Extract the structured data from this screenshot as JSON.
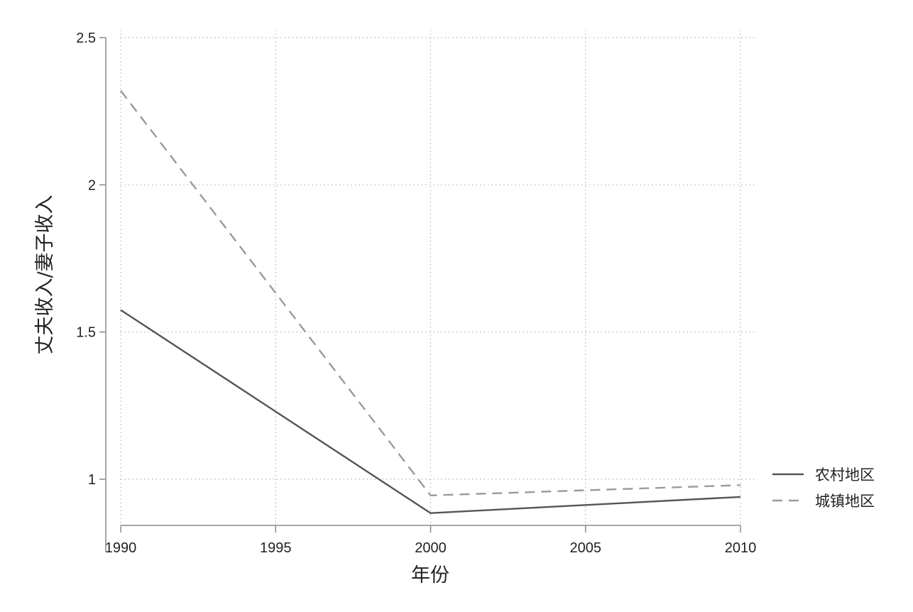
{
  "chart_data": {
    "type": "line",
    "xlabel": "年份",
    "ylabel": "丈夫收入/妻子收入",
    "x": [
      1990,
      2000,
      2010
    ],
    "xticks": [
      1990,
      1995,
      2000,
      2005,
      2010
    ],
    "yticks": [
      1,
      1.5,
      2,
      2.5
    ],
    "ytick_labels": [
      "1",
      "1.5",
      "2",
      "2.5"
    ],
    "xlim": [
      1990,
      2010
    ],
    "ylim": [
      0.85,
      2.5
    ],
    "grid": true,
    "legend_position": "right",
    "series": [
      {
        "name": "农村地区",
        "values": [
          1.575,
          0.885,
          0.94
        ],
        "color": "#555555",
        "style": "solid"
      },
      {
        "name": "城镇地区",
        "values": [
          2.32,
          0.945,
          0.98
        ],
        "color": "#9a9a9a",
        "style": "dashed"
      }
    ]
  }
}
